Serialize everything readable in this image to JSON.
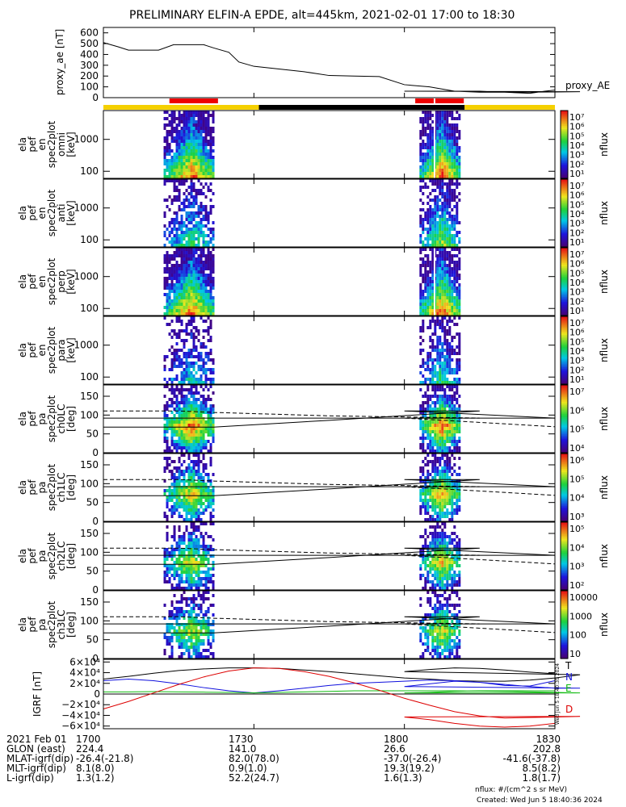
{
  "title": "PRELIMINARY ELFIN-A EPDE, alt=445km, 2021-02-01 17:00 to 18:30",
  "colors": {
    "yellow": "#f5d000",
    "black": "#000000",
    "red": "#ee0000",
    "n_line": "#1010dd",
    "e_line": "#10bb10",
    "d_line": "#dd0000"
  },
  "chart_data": [
    {
      "type": "line",
      "ylabel": "proxy_ae [nT]",
      "ylim": [
        0,
        650
      ],
      "yticks": [
        "600",
        "500",
        "400",
        "300",
        "200",
        "100",
        "0"
      ],
      "series": [
        {
          "name": "proxy_AE",
          "x": [
            1700,
            1703,
            1705,
            1711,
            1714,
            1717,
            1720,
            1722,
            1725,
            1727,
            1730,
            1735,
            1740,
            1745,
            1750,
            1755,
            1760,
            1765,
            1770,
            1775,
            1780,
            1790,
            1795,
            1800,
            1805,
            1810,
            1815,
            1820,
            1825,
            1828,
            1830
          ],
          "values": [
            510,
            470,
            440,
            440,
            490,
            490,
            490,
            460,
            420,
            330,
            290,
            265,
            240,
            205,
            200,
            195,
            120,
            100,
            60,
            50,
            50,
            52,
            55,
            60,
            60,
            60,
            60,
            50,
            40,
            60,
            70
          ]
        }
      ]
    },
    {
      "type": "bar",
      "name": "orbit_coverage_bar",
      "segments": [
        {
          "x0": 1700,
          "x1": 1731,
          "color": "yellow"
        },
        {
          "x0": 1731,
          "x1": 1772,
          "color": "black"
        },
        {
          "x0": 1772,
          "x1": 1830,
          "color": "yellow"
        }
      ],
      "science_zones": [
        {
          "x0": 1713,
          "x1": 1723
        },
        {
          "x0": 1802,
          "x1": 1806
        },
        {
          "x0": 1806,
          "x1": 1812
        }
      ]
    },
    {
      "type": "heatmap",
      "ylabel": [
        "ela",
        "pef",
        "en",
        "spec2plot",
        "omni",
        "[keV]"
      ],
      "yticks": [
        "1000",
        "100"
      ],
      "ytick_vals": [
        1000,
        100
      ],
      "ylog": true,
      "ylim": [
        60,
        8000
      ],
      "ztitle": "nflux",
      "zticks": [
        "10⁷",
        "10⁶",
        "10⁵",
        "10⁴",
        "10³",
        "10²",
        "10¹"
      ],
      "bursts": [
        {
          "x0": 1712,
          "x1": 1722,
          "intensity": 1.0
        },
        {
          "x0": 1803,
          "x1": 1811,
          "intensity": 1.0
        }
      ]
    },
    {
      "type": "heatmap",
      "ylabel": [
        "ela",
        "pef",
        "en",
        "spec2plot",
        "anti",
        "[keV]"
      ],
      "yticks": [
        "1000",
        "100"
      ],
      "ytick_vals": [
        1000,
        100
      ],
      "ylog": true,
      "ylim": [
        60,
        8000
      ],
      "ztitle": "nflux",
      "zticks": [
        "10⁷",
        "10⁶",
        "10⁵",
        "10⁴",
        "10³",
        "10²",
        "10¹"
      ],
      "bursts": [
        {
          "x0": 1712,
          "x1": 1722,
          "intensity": 0.55
        },
        {
          "x0": 1803,
          "x1": 1811,
          "intensity": 0.7
        }
      ]
    },
    {
      "type": "heatmap",
      "ylabel": [
        "ela",
        "pef",
        "en",
        "spec2plot",
        "perp",
        "[keV]"
      ],
      "yticks": [
        "1000",
        "100"
      ],
      "ytick_vals": [
        1000,
        100
      ],
      "ylog": true,
      "ylim": [
        60,
        8000
      ],
      "ztitle": "nflux",
      "zticks": [
        "10⁷",
        "10⁶",
        "10⁵",
        "10⁴",
        "10³",
        "10²",
        "10¹"
      ],
      "bursts": [
        {
          "x0": 1712,
          "x1": 1722,
          "intensity": 1.0
        },
        {
          "x0": 1803,
          "x1": 1811,
          "intensity": 1.0
        }
      ]
    },
    {
      "type": "heatmap",
      "ylabel": [
        "ela",
        "pef",
        "en",
        "spec2plot",
        "para",
        "[keV]"
      ],
      "yticks": [
        "1000",
        "100"
      ],
      "ytick_vals": [
        1000,
        100
      ],
      "ylog": true,
      "ylim": [
        60,
        8000
      ],
      "ztitle": "nflux",
      "zticks": [
        "10⁷",
        "10⁶",
        "10⁵",
        "10⁴",
        "10³",
        "10²",
        "10¹"
      ],
      "bursts": [
        {
          "x0": 1712,
          "x1": 1722,
          "intensity": 0.45
        },
        {
          "x0": 1803,
          "x1": 1811,
          "intensity": 0.55
        }
      ]
    },
    {
      "type": "heatmap",
      "ylabel": [
        "ela",
        "pef",
        "pa",
        "spec2plot",
        "ch0LC",
        "[deg]"
      ],
      "yticks": [
        "150",
        "100",
        "50",
        "0"
      ],
      "ytick_vals": [
        150,
        100,
        50,
        0
      ],
      "ylog": false,
      "ylim": [
        0,
        180
      ],
      "ztitle": "nflux",
      "zticks": [
        "10⁷",
        "10⁶",
        "10⁵",
        "10⁴"
      ],
      "bursts": [
        {
          "x0": 1712,
          "x1": 1722,
          "intensity": 1.0
        },
        {
          "x0": 1803,
          "x1": 1811,
          "intensity": 1.0
        }
      ]
    },
    {
      "type": "heatmap",
      "ylabel": [
        "ela",
        "pef",
        "pa",
        "spec2plot",
        "ch1LC",
        "[deg]"
      ],
      "yticks": [
        "150",
        "100",
        "50",
        "0"
      ],
      "ytick_vals": [
        150,
        100,
        50,
        0
      ],
      "ylog": false,
      "ylim": [
        0,
        180
      ],
      "ztitle": "nflux",
      "zticks": [
        "10⁶",
        "10⁵",
        "10⁴",
        "10³"
      ],
      "bursts": [
        {
          "x0": 1712,
          "x1": 1722,
          "intensity": 0.85
        },
        {
          "x0": 1803,
          "x1": 1811,
          "intensity": 0.9
        }
      ]
    },
    {
      "type": "heatmap",
      "ylabel": [
        "ela",
        "pef",
        "pa",
        "spec2plot",
        "ch2LC",
        "[deg]"
      ],
      "yticks": [
        "150",
        "100",
        "50",
        "0"
      ],
      "ytick_vals": [
        150,
        100,
        50,
        0
      ],
      "ylog": false,
      "ylim": [
        0,
        180
      ],
      "ztitle": "nflux",
      "zticks": [
        "10⁵",
        "10⁴",
        "10³",
        "10²"
      ],
      "bursts": [
        {
          "x0": 1712,
          "x1": 1722,
          "intensity": 0.8
        },
        {
          "x0": 1803,
          "x1": 1811,
          "intensity": 0.85
        }
      ]
    },
    {
      "type": "heatmap",
      "ylabel": [
        "ela",
        "pef",
        "pa",
        "spec2plot",
        "ch3LC",
        "[deg]"
      ],
      "yticks": [
        "150",
        "100",
        "50",
        "0"
      ],
      "ytick_vals": [
        150,
        100,
        50,
        0
      ],
      "ylog": false,
      "ylim": [
        0,
        180
      ],
      "ztitle": "nflux",
      "zticks": [
        "10000",
        "1000",
        "100",
        "10"
      ],
      "bursts": [
        {
          "x0": 1712,
          "x1": 1722,
          "intensity": 0.75
        },
        {
          "x0": 1803,
          "x1": 1811,
          "intensity": 0.8
        }
      ]
    },
    {
      "type": "line",
      "ylabel": "IGRF [nT]",
      "ylim": [
        -65000,
        65000
      ],
      "yticks": [
        "6×10⁴",
        "4×10⁴",
        "2×10⁴",
        "0",
        "−2×10⁴",
        "−4×10⁴",
        "−6×10⁴"
      ],
      "ytick_vals": [
        60000,
        40000,
        20000,
        0,
        -20000,
        -40000,
        -60000
      ],
      "x": [
        1700,
        1705,
        1710,
        1715,
        1720,
        1725,
        1730,
        1735,
        1740,
        1745,
        1750,
        1755,
        1760,
        1765,
        1770,
        1775,
        1780,
        1785,
        1790,
        1795,
        1800,
        1805,
        1810,
        1815,
        1820,
        1825,
        1830
      ],
      "series": [
        {
          "name": "T",
          "color_key": "black",
          "values": [
            28000,
            33000,
            39000,
            44000,
            47000,
            49000,
            49000,
            48000,
            45000,
            42000,
            38000,
            34000,
            30000,
            28000,
            25000,
            24000,
            24000,
            26000,
            30000,
            36000,
            42000,
            46000,
            49000,
            48000,
            45000,
            41000,
            38000
          ]
        },
        {
          "name": "N",
          "color_key": "n_line",
          "values": [
            25000,
            28000,
            25000,
            19000,
            12000,
            6000,
            2000,
            6000,
            11000,
            16000,
            20000,
            22000,
            24000,
            26000,
            25000,
            22000,
            18000,
            14000,
            11000,
            11000,
            14000,
            19000,
            24000,
            22000,
            16000,
            15000,
            25000
          ]
        },
        {
          "name": "E",
          "color_key": "e_line",
          "values": [
            4000,
            4000,
            4500,
            4000,
            3500,
            3000,
            2000,
            3000,
            4000,
            5000,
            6000,
            6000,
            6000,
            6000,
            6000,
            5500,
            5000,
            4000,
            3000,
            2000,
            2000,
            3000,
            5000,
            6000,
            6000,
            6000,
            6000
          ]
        },
        {
          "name": "D",
          "color_key": "d_line",
          "values": [
            -28000,
            -14000,
            2000,
            18000,
            32000,
            43000,
            49000,
            48000,
            42000,
            33000,
            21000,
            7000,
            -8000,
            -21000,
            -33000,
            -41000,
            -45000,
            -44000,
            -43000,
            -42000,
            -43000,
            -48000,
            -55000,
            -60000,
            -62000,
            -60000,
            -55000
          ]
        }
      ]
    }
  ],
  "x_axis": {
    "ticks": [
      "1700",
      "1730",
      "1800",
      "1830"
    ],
    "tick_vals": [
      1700,
      1730,
      1800,
      1830
    ]
  },
  "footer_rows": [
    {
      "label": "2021 Feb 01",
      "values": [
        "1700",
        "1730",
        "1800",
        "1830"
      ]
    },
    {
      "label": "GLON (east)",
      "values": [
        "224.4",
        "141.0",
        "26.6",
        "202.8"
      ]
    },
    {
      "label": "MLAT-igrf(dip)",
      "values": [
        "-26.4(-21.8)",
        "82.0(78.0)",
        "-37.0(-26.4)",
        "-41.6(-37.8)"
      ]
    },
    {
      "label": "MLT-igrf(dip)",
      "values": [
        "8.1(8.0)",
        "0.9(1.0)",
        "19.3(19.2)",
        "8.5(8.2)"
      ]
    },
    {
      "label": "L-igrf(dip)",
      "values": [
        "1.3(1.2)",
        "52.2(24.7)",
        "1.6(1.3)",
        "1.8(1.7)"
      ]
    }
  ],
  "side_stamp": "Wed Jun  5 18:40:35 2024",
  "footer_note": "nflux: #/(cm^2 s sr MeV)",
  "created": "Created: Wed Jun  5 18:40:36 2024"
}
